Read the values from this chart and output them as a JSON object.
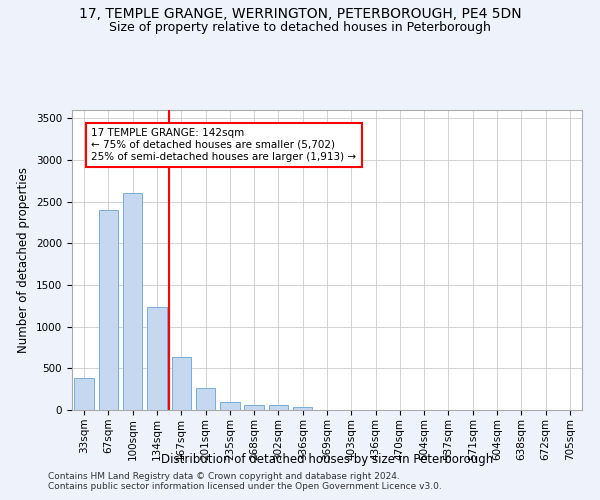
{
  "title_line1": "17, TEMPLE GRANGE, WERRINGTON, PETERBOROUGH, PE4 5DN",
  "title_line2": "Size of property relative to detached houses in Peterborough",
  "xlabel": "Distribution of detached houses by size in Peterborough",
  "ylabel": "Number of detached properties",
  "categories": [
    "33sqm",
    "67sqm",
    "100sqm",
    "134sqm",
    "167sqm",
    "201sqm",
    "235sqm",
    "268sqm",
    "302sqm",
    "336sqm",
    "369sqm",
    "403sqm",
    "436sqm",
    "470sqm",
    "504sqm",
    "537sqm",
    "571sqm",
    "604sqm",
    "638sqm",
    "672sqm",
    "705sqm"
  ],
  "values": [
    390,
    2400,
    2600,
    1240,
    640,
    260,
    95,
    55,
    55,
    40,
    0,
    0,
    0,
    0,
    0,
    0,
    0,
    0,
    0,
    0,
    0
  ],
  "bar_color": "#c5d8f0",
  "bar_edge_color": "#7aadd4",
  "vline_color": "red",
  "annotation_text": "17 TEMPLE GRANGE: 142sqm\n← 75% of detached houses are smaller (5,702)\n25% of semi-detached houses are larger (1,913) →",
  "annotation_box_color": "white",
  "annotation_box_edge_color": "red",
  "ylim": [
    0,
    3600
  ],
  "yticks": [
    0,
    500,
    1000,
    1500,
    2000,
    2500,
    3000,
    3500
  ],
  "footer_line1": "Contains HM Land Registry data © Crown copyright and database right 2024.",
  "footer_line2": "Contains public sector information licensed under the Open Government Licence v3.0.",
  "bg_color": "#eef2fb",
  "plot_bg_color": "#ffffff",
  "grid_color": "#cccccc",
  "title_fontsize": 10,
  "subtitle_fontsize": 9,
  "axis_label_fontsize": 8.5,
  "tick_fontsize": 7.5,
  "footer_fontsize": 6.5
}
